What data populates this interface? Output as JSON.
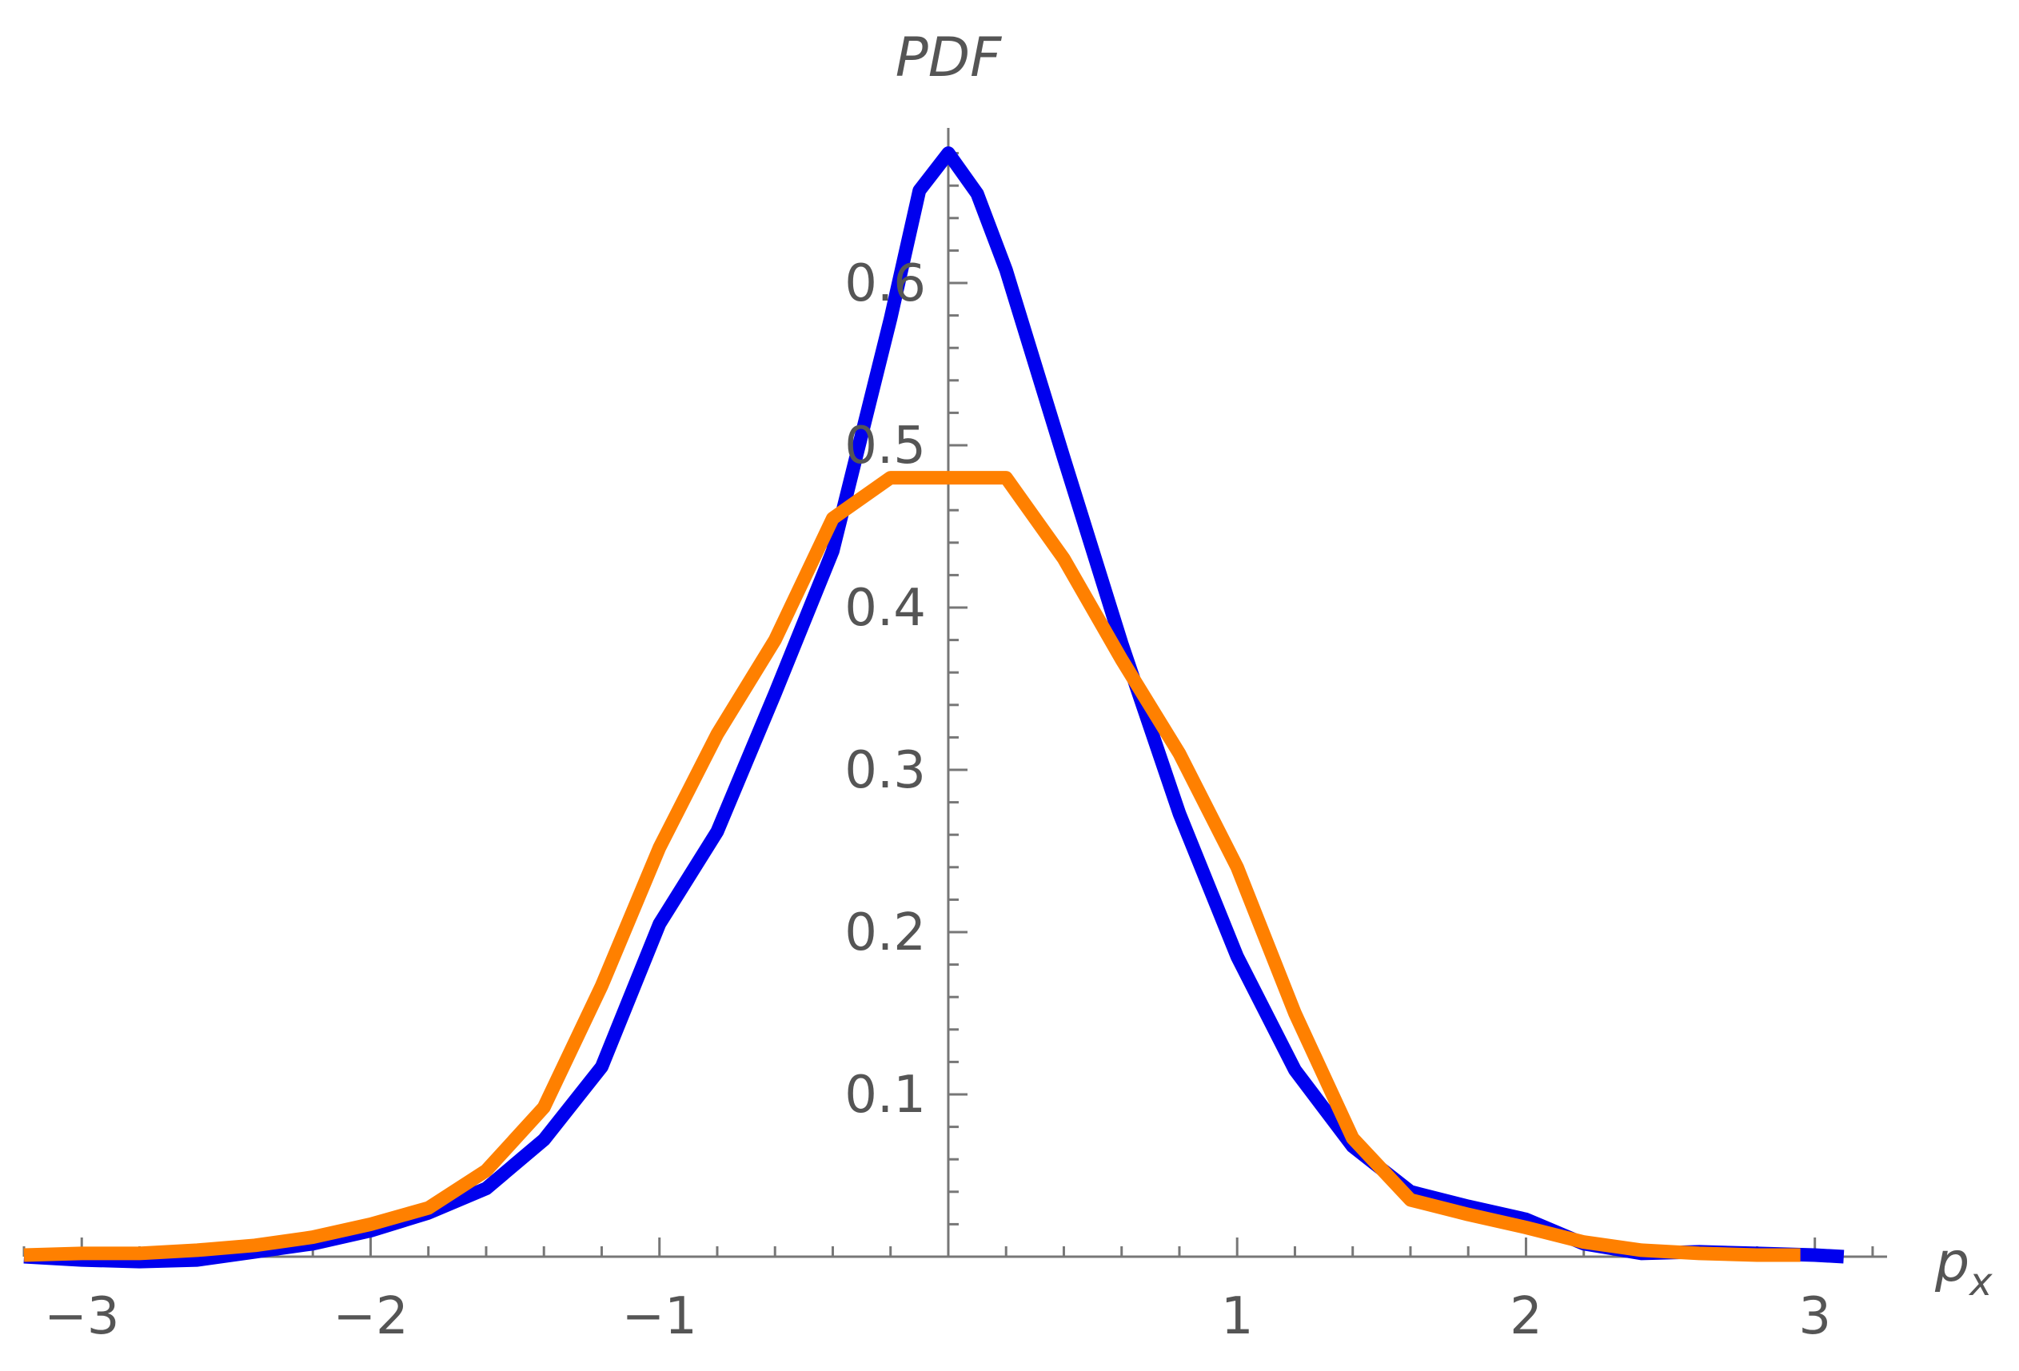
{
  "chart_data": {
    "type": "line",
    "title": "",
    "xlabel": "p",
    "xlabel_sub": "x",
    "ylabel": "PDF",
    "xlim": [
      -3.2,
      3.25
    ],
    "ylim": [
      0,
      0.7
    ],
    "grid": false,
    "x_ticks": [
      -3,
      -2,
      -1,
      1,
      2,
      3
    ],
    "x_tick_labels": [
      "−3",
      "−2",
      "−1",
      "1",
      "2",
      "3"
    ],
    "y_ticks": [
      0.1,
      0.2,
      0.3,
      0.4,
      0.5,
      0.6
    ],
    "y_tick_labels": [
      "0.1",
      "0.2",
      "0.3",
      "0.4",
      "0.5",
      "0.6"
    ],
    "series": [
      {
        "color": "#0000ee",
        "x": [
          -3.2,
          -3.0,
          -2.8,
          -2.6,
          -2.4,
          -2.2,
          -2.0,
          -1.8,
          -1.6,
          -1.4,
          -1.2,
          -1.0,
          -0.8,
          -0.6,
          -0.4,
          -0.2,
          -0.1,
          0.0,
          0.1,
          0.2,
          0.4,
          0.6,
          0.8,
          1.0,
          1.2,
          1.4,
          1.6,
          1.8,
          2.0,
          2.2,
          2.4,
          2.6,
          2.8,
          3.0,
          3.1
        ],
        "values": [
          0.0,
          -0.002,
          -0.003,
          -0.002,
          0.003,
          0.008,
          0.016,
          0.027,
          0.042,
          0.072,
          0.117,
          0.205,
          0.262,
          0.347,
          0.435,
          0.578,
          0.657,
          0.68,
          0.655,
          0.608,
          0.492,
          0.378,
          0.273,
          0.185,
          0.115,
          0.068,
          0.04,
          0.031,
          0.023,
          0.008,
          0.002,
          0.003,
          0.002,
          0.001,
          0.0
        ]
      },
      {
        "color": "#ff8000",
        "x": [
          -3.2,
          -3.0,
          -2.8,
          -2.6,
          -2.4,
          -2.2,
          -2.0,
          -1.8,
          -1.6,
          -1.4,
          -1.2,
          -1.0,
          -0.8,
          -0.6,
          -0.4,
          -0.2,
          0.0,
          0.2,
          0.4,
          0.6,
          0.8,
          1.0,
          1.2,
          1.4,
          1.6,
          1.8,
          2.0,
          2.2,
          2.4,
          2.6,
          2.8,
          2.95
        ],
        "values": [
          0.001,
          0.002,
          0.002,
          0.004,
          0.007,
          0.012,
          0.02,
          0.03,
          0.053,
          0.092,
          0.167,
          0.252,
          0.322,
          0.38,
          0.455,
          0.48,
          0.48,
          0.48,
          0.43,
          0.368,
          0.31,
          0.24,
          0.15,
          0.073,
          0.035,
          0.026,
          0.018,
          0.009,
          0.004,
          0.002,
          0.001,
          0.001
        ]
      }
    ]
  }
}
